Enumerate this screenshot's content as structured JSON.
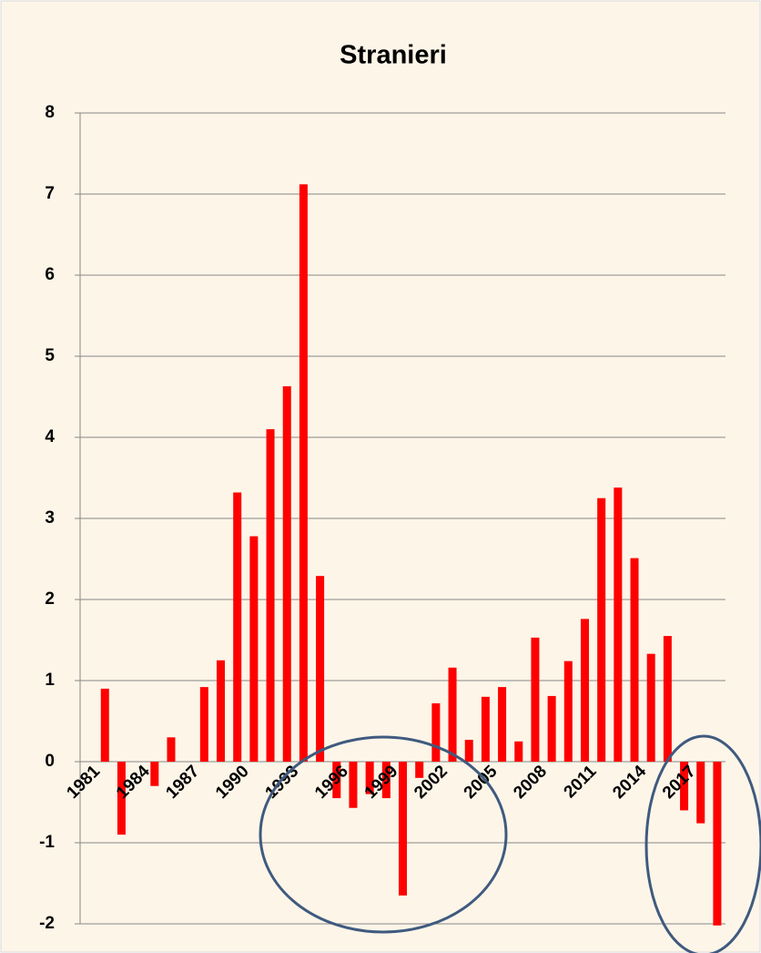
{
  "chart_data": {
    "type": "bar",
    "title": "Stranieri",
    "categories": [
      "1981",
      null,
      null,
      "1984",
      null,
      null,
      "1987",
      null,
      null,
      "1990",
      null,
      null,
      "1993",
      null,
      null,
      "1996",
      null,
      null,
      "1999",
      null,
      null,
      "2002",
      null,
      null,
      "2005",
      null,
      null,
      "2008",
      null,
      null,
      "2011",
      null,
      null,
      "2014",
      null,
      null,
      "2017",
      null,
      null
    ],
    "values": [
      0,
      0.9,
      -0.9,
      0,
      -0.3,
      0.3,
      0,
      0.92,
      1.25,
      3.32,
      2.78,
      4.1,
      4.63,
      7.12,
      2.29,
      -0.45,
      -0.57,
      -0.4,
      -0.45,
      -1.65,
      -0.2,
      0.72,
      1.16,
      0.27,
      0.8,
      0.92,
      0.25,
      1.53,
      0.81,
      1.24,
      1.76,
      3.25,
      3.38,
      2.51,
      1.33,
      1.55,
      -0.6,
      -0.76,
      -2.02
    ],
    "color": "#ff0000",
    "ylim": [
      -2,
      8
    ],
    "yticks": [
      -2,
      -1,
      0,
      1,
      2,
      3,
      4,
      5,
      6,
      7,
      8
    ],
    "grid": true
  }
}
